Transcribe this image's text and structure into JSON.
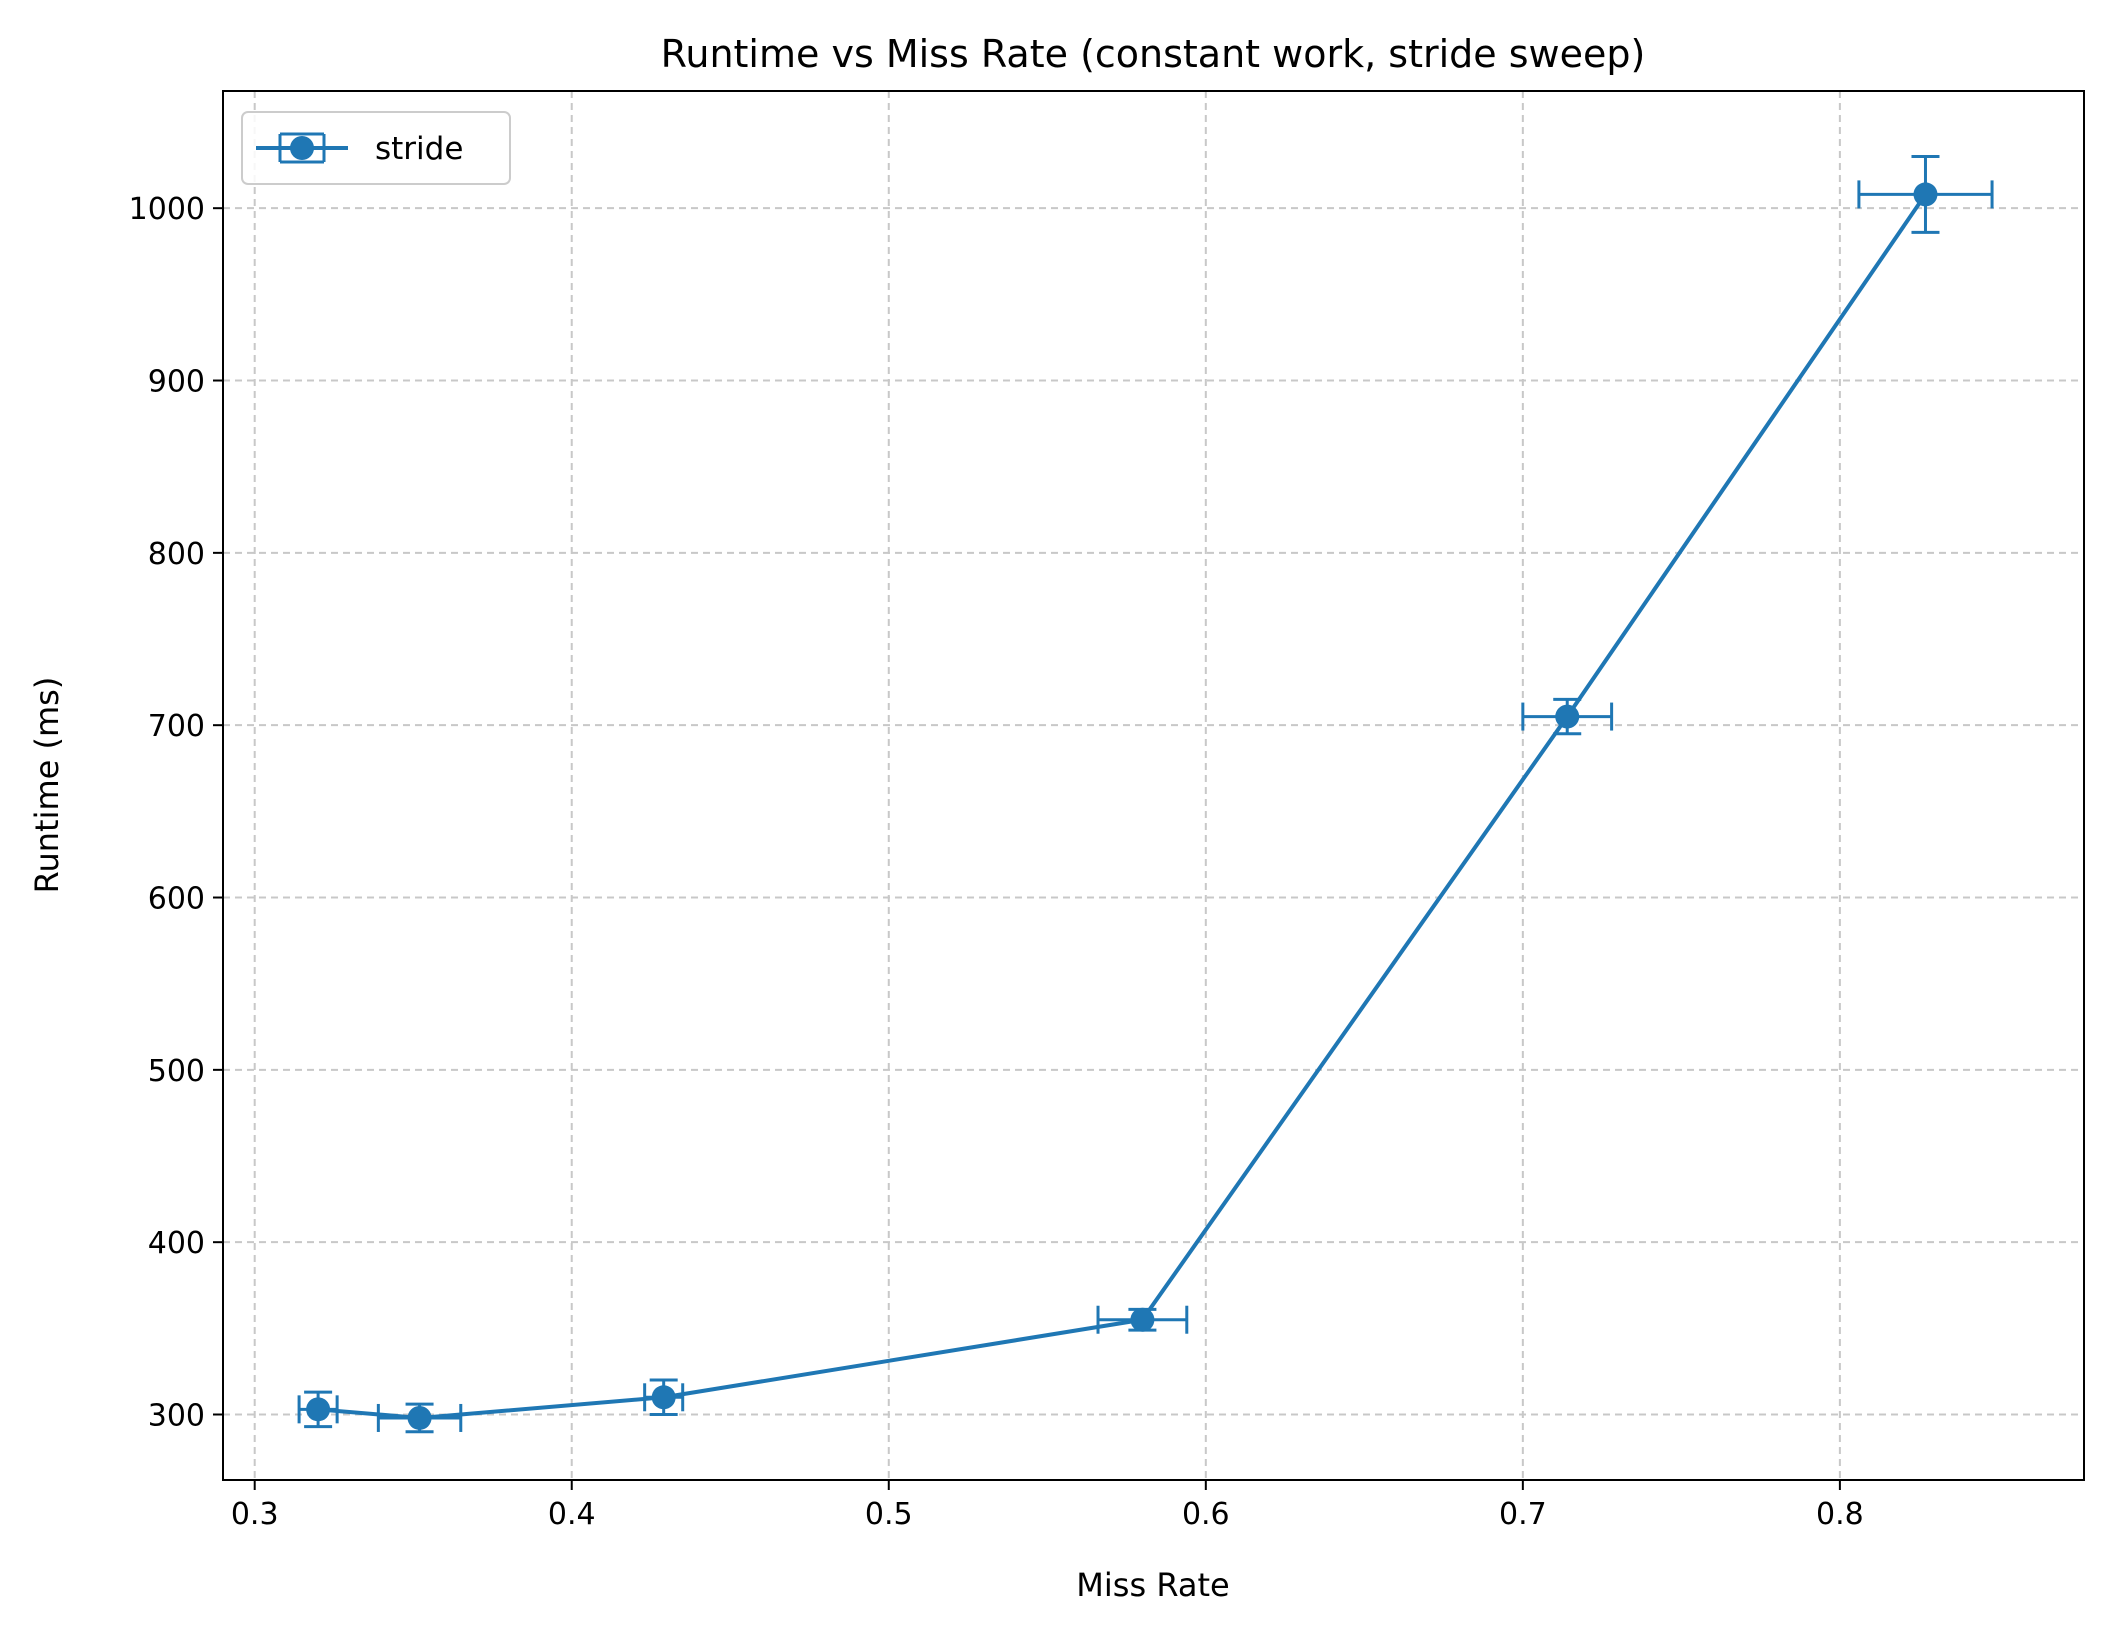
{
  "chart_data": {
    "type": "line",
    "title": "Runtime vs Miss Rate (constant work, stride sweep)",
    "xlabel": "Miss Rate",
    "ylabel": "Runtime (ms)",
    "xlim": [
      0.29,
      0.877
    ],
    "ylim": [
      262,
      1068
    ],
    "x_ticks": [
      0.3,
      0.4,
      0.5,
      0.6,
      0.7,
      0.8
    ],
    "x_tick_labels": [
      "0.3",
      "0.4",
      "0.5",
      "0.6",
      "0.7",
      "0.8"
    ],
    "y_ticks": [
      300,
      400,
      500,
      600,
      700,
      800,
      900,
      1000
    ],
    "y_tick_labels": [
      "300",
      "400",
      "500",
      "600",
      "700",
      "800",
      "900",
      "1000"
    ],
    "grid": true,
    "legend_position": "top-left",
    "color": "#1f77b4",
    "series": [
      {
        "name": "stride",
        "x": [
          0.32,
          0.352,
          0.429,
          0.58,
          0.714,
          0.827
        ],
        "y": [
          303,
          298,
          310,
          355,
          705,
          1008
        ],
        "x_err": [
          0.006,
          0.013,
          0.006,
          0.014,
          0.014,
          0.021
        ],
        "y_err": [
          10,
          8,
          10,
          6,
          10,
          22
        ]
      }
    ]
  }
}
